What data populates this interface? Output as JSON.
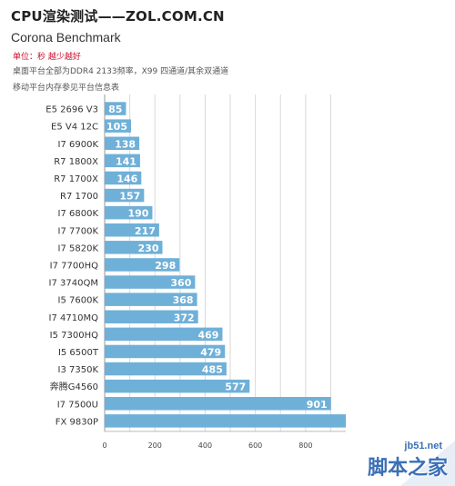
{
  "header": {
    "title": "CPU渲染测试——ZOL.COM.CN",
    "subtitle": "Corona Benchmark",
    "unit_note": "单位：秒 越少越好",
    "note_line1": "桌面平台全部为DDR4 2133频率，X99 四通道/其余双通道",
    "note_line2": "移动平台内存参见平台信息表"
  },
  "colors": {
    "bar": "#6fb0d8",
    "label": "#ffffff",
    "grid": "#d9d9d9",
    "axis_text": "#444444"
  },
  "chart_data": {
    "type": "bar",
    "orientation": "horizontal",
    "categories": [
      "E5 2696 V3",
      "E5  V4 12C",
      "I7 6900K",
      "R7 1800X",
      "R7 1700X",
      "R7 1700",
      "I7 6800K",
      "I7 7700K",
      "I7 5820K",
      "I7 7700HQ",
      "I7 3740QM",
      "I5 7600K",
      "I7 4710MQ",
      "I5 7300HQ",
      "I5 6500T",
      "I3 7350K",
      "奔腾G4560",
      "I7 7500U",
      "FX 9830P"
    ],
    "values": [
      85,
      105,
      138,
      141,
      146,
      157,
      190,
      217,
      230,
      298,
      360,
      368,
      372,
      469,
      479,
      485,
      577,
      901,
      960
    ],
    "data_labels": [
      "85",
      "105",
      "138",
      "141",
      "146",
      "157",
      "190",
      "217",
      "230",
      "298",
      "360",
      "368",
      "372",
      "469",
      "479",
      "485",
      "577",
      "901",
      ""
    ],
    "xlim": [
      0,
      960
    ],
    "xticks": [
      "0",
      "200",
      "400",
      "600",
      "800"
    ],
    "grid": true
  },
  "watermark": {
    "site": "jb51.net",
    "name": "脚本之家"
  }
}
